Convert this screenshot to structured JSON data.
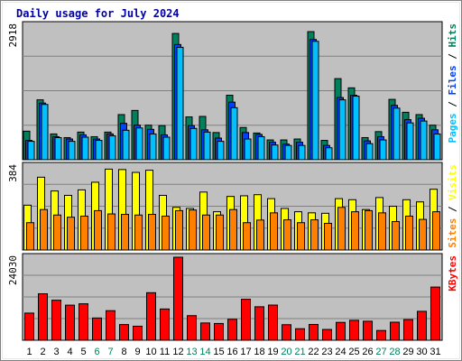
{
  "chart_data": {
    "type": "bar",
    "title": "Daily usage for July 2024",
    "background_color": "#c0c0c0",
    "categories": [
      "1",
      "2",
      "3",
      "4",
      "5",
      "6",
      "7",
      "8",
      "9",
      "10",
      "11",
      "12",
      "13",
      "14",
      "15",
      "16",
      "17",
      "18",
      "19",
      "20",
      "21",
      "22",
      "23",
      "24",
      "25",
      "26",
      "27",
      "28",
      "29",
      "30",
      "31"
    ],
    "weekend_days": [
      "6",
      "7",
      "13",
      "14",
      "20",
      "21",
      "27",
      "28"
    ],
    "day_colors": {
      "weekday": "#000000",
      "weekend": "#00805c"
    },
    "panels": [
      {
        "id": "hits_files_pages",
        "ymax_label": "2918",
        "ymax": 2918,
        "side_labels": [
          {
            "text": "Pages",
            "color": "#00c0ff"
          },
          {
            "text": " / ",
            "color": "#000000"
          },
          {
            "text": "Files",
            "color": "#0040ff"
          },
          {
            "text": " / ",
            "color": "#000000"
          },
          {
            "text": "Hits",
            "color": "#00805c"
          }
        ],
        "series": [
          {
            "name": "Hits",
            "color": "#00805c",
            "values": [
              620,
              1300,
              560,
              480,
              600,
              500,
              600,
              980,
              1070,
              750,
              740,
              2740,
              930,
              940,
              590,
              1400,
              700,
              580,
              430,
              430,
              450,
              2780,
              420,
              1760,
              1560,
              480,
              610,
              1310,
              1030,
              980,
              750
            ]
          },
          {
            "name": "Files",
            "color": "#0040ff",
            "values": [
              420,
              1230,
              500,
              450,
              540,
              450,
              560,
              790,
              750,
              660,
              540,
              2500,
              740,
              650,
              470,
              1250,
              590,
              550,
              380,
              340,
              380,
              2610,
              310,
              1350,
              1400,
              410,
              500,
              1180,
              870,
              900,
              650
            ]
          },
          {
            "name": "Pages",
            "color": "#00c0ff",
            "values": [
              400,
              1200,
              480,
              400,
              490,
              420,
              520,
              640,
              690,
              560,
              490,
              2440,
              680,
              600,
              400,
              1130,
              450,
              500,
              320,
              310,
              310,
              2570,
              260,
              1300,
              1380,
              350,
              430,
              1120,
              800,
              840,
              560
            ]
          }
        ]
      },
      {
        "id": "visits_sites",
        "ymax_label": "384",
        "ymax": 384,
        "side_labels": [
          {
            "text": "Sites",
            "color": "#ff8000"
          },
          {
            "text": " / ",
            "color": "#000000"
          },
          {
            "text": "Visits",
            "color": "#ffff00"
          }
        ],
        "series": [
          {
            "name": "Visits",
            "color": "#ffff00",
            "values": [
              205,
              333,
              270,
              250,
              275,
              310,
              370,
              368,
              355,
              365,
              250,
              195,
              190,
              265,
              175,
              245,
              248,
              253,
              235,
              190,
              175,
              170,
              168,
              235,
              230,
              185,
              240,
              200,
              230,
              220,
              278
            ]
          },
          {
            "name": "Sites",
            "color": "#ff8000",
            "values": [
              125,
              185,
              160,
              150,
              155,
              180,
              165,
              163,
              160,
              163,
              155,
              180,
              183,
              160,
              160,
              185,
              125,
              137,
              170,
              138,
              125,
              138,
              122,
              195,
              175,
              180,
              170,
              130,
              155,
              140,
              175
            ]
          }
        ]
      },
      {
        "id": "kbytes",
        "ymax_label": "24030",
        "ymax": 24030,
        "side_labels": [
          {
            "text": "KBytes",
            "color": "#ff0000"
          }
        ],
        "series": [
          {
            "name": "KBytes",
            "color": "#ff0000",
            "values": [
              7860,
              13450,
              11590,
              10160,
              10550,
              6440,
              8560,
              4540,
              4060,
              13760,
              9050,
              24030,
              7120,
              5000,
              4850,
              6060,
              11860,
              9690,
              10180,
              4500,
              3340,
              4570,
              3120,
              5170,
              5770,
              5500,
              2820,
              5220,
              5980,
              8370,
              15390
            ]
          }
        ]
      }
    ]
  }
}
